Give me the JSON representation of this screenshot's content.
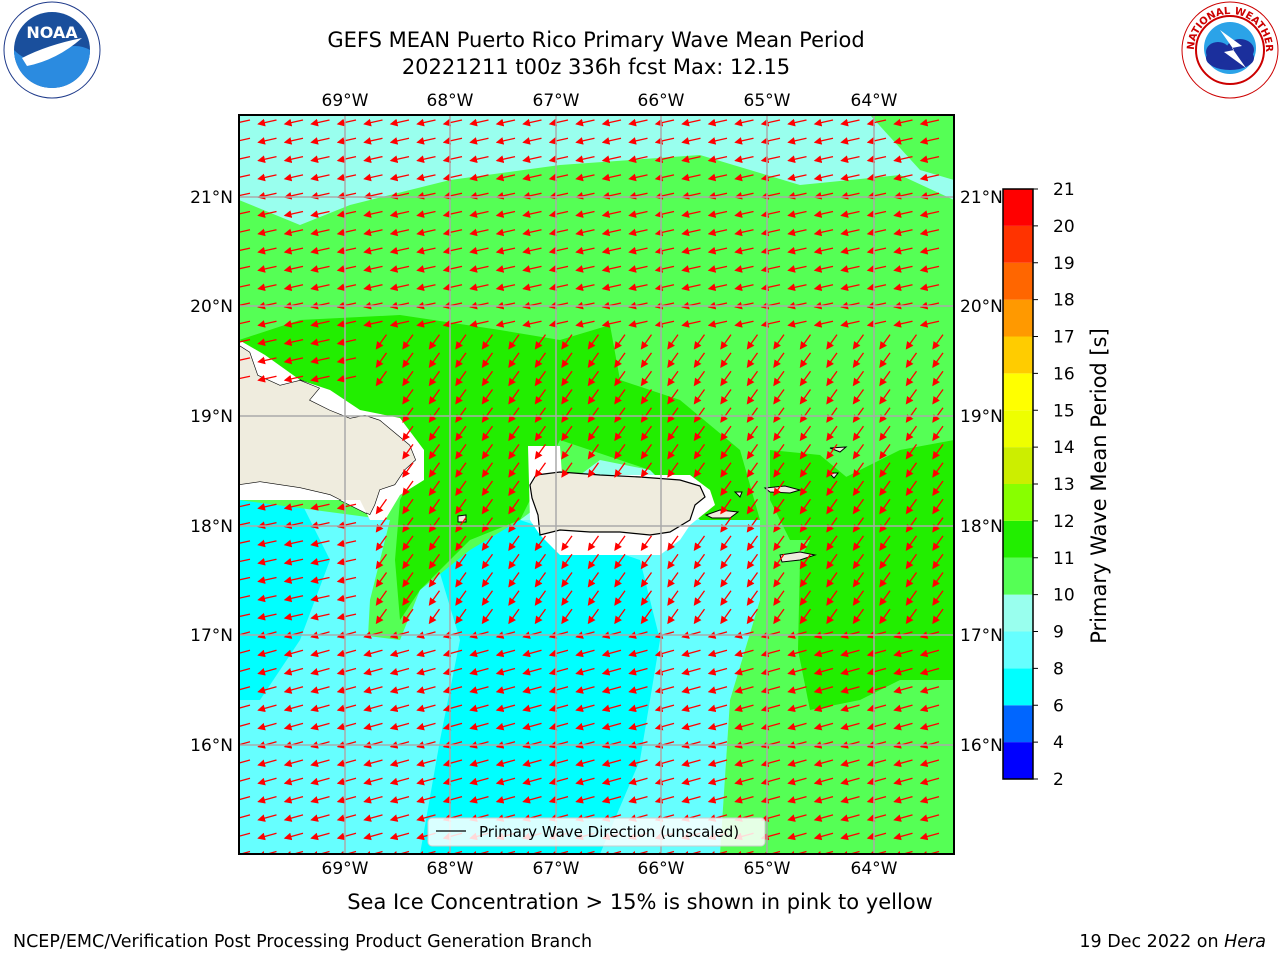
{
  "header": {
    "title": "GEFS MEAN Puerto Rico Primary Wave Mean Period",
    "subtitle": "20221211 t00z 336h fcst   Max: 12.15"
  },
  "logos": {
    "left": {
      "name": "noaa-logo",
      "text": "NOAA",
      "ring_text": "NATIONAL OCEANIC AND ATMOSPHERIC ADMINISTRATION · U.S. DEPARTMENT OF COMMERCE"
    },
    "right": {
      "name": "nws-logo",
      "ring_text": "NATIONAL WEATHER SERVICE"
    }
  },
  "map": {
    "lon_ticks": [
      "69°W",
      "68°W",
      "67°W",
      "66°W",
      "65°W",
      "64°W"
    ],
    "lat_ticks": [
      "21°N",
      "20°N",
      "19°N",
      "18°N",
      "17°N",
      "16°N"
    ],
    "legend_label": "Primary Wave Direction (unscaled)",
    "arrow_color": "#ff0000",
    "land_color": "#efecde"
  },
  "colorbar": {
    "label": "Primary Wave Mean Period [s]",
    "ticks": [
      "2",
      "4",
      "6",
      "8",
      "9",
      "10",
      "11",
      "12",
      "13",
      "14",
      "15",
      "16",
      "17",
      "18",
      "19",
      "20",
      "21"
    ],
    "colors": [
      "#0000ff",
      "#0066ff",
      "#00ffff",
      "#66ffff",
      "#99ffee",
      "#55ff55",
      "#22ee00",
      "#88ff00",
      "#ccee00",
      "#eeff00",
      "#ffff00",
      "#ffcc00",
      "#ff9900",
      "#ff6600",
      "#ff3300",
      "#ff0000"
    ]
  },
  "caption": "Sea Ice Concentration > 15% is shown in pink to yellow",
  "footer": {
    "left": "NCEP/EMC/Verification Post Processing Product Generation Branch",
    "right_prefix": "19 Dec 2022 on ",
    "right_host": "Hera"
  }
}
